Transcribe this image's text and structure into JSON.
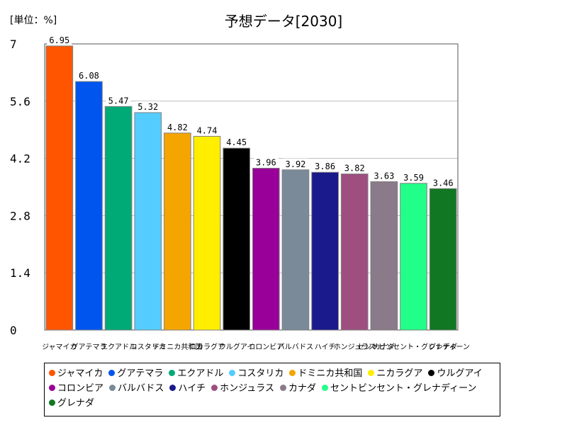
{
  "header": {
    "unit_label": "[単位：%]",
    "title": "予想データ[2030]"
  },
  "chart_data": {
    "type": "bar",
    "title": "予想データ[2030]",
    "unit": "[単位：%]",
    "xlabel": "",
    "ylabel": "",
    "ylim": [
      0,
      7
    ],
    "yticks": [
      0,
      1.4,
      2.8,
      4.2,
      5.6,
      7
    ],
    "ytick_labels": [
      "0",
      "1.4",
      "2.8",
      "4.2",
      "5.6",
      "7"
    ],
    "grid": true,
    "legend_position": "bottom",
    "categories": [
      "ジャマイカ",
      "グアテマラ",
      "エクアドル",
      "コスタリカ",
      "ドミニカ共和国",
      "ニカラグア",
      "ウルグアイ",
      "コロンビア",
      "バルバドス",
      "ハイチ",
      "ホンジュラス",
      "カナダ",
      "セントビンセント・グレナディーン",
      "グレナダ"
    ],
    "values": [
      6.95,
      6.08,
      5.47,
      5.32,
      4.82,
      4.74,
      4.45,
      3.96,
      3.92,
      3.86,
      3.82,
      3.63,
      3.59,
      3.46
    ],
    "value_labels": [
      "6.95",
      "6.08",
      "5.47",
      "5.32",
      "4.82",
      "4.74",
      "4.45",
      "3.96",
      "3.92",
      "3.86",
      "3.82",
      "3.63",
      "3.59",
      "3.46"
    ],
    "colors": [
      "#ff5500",
      "#0055ee",
      "#00aa77",
      "#55ccff",
      "#f5a500",
      "#ffee00",
      "#000000",
      "#990099",
      "#7a8a99",
      "#1a1a8c",
      "#9e4f80",
      "#8a7a8a",
      "#22ff88",
      "#117722"
    ]
  }
}
